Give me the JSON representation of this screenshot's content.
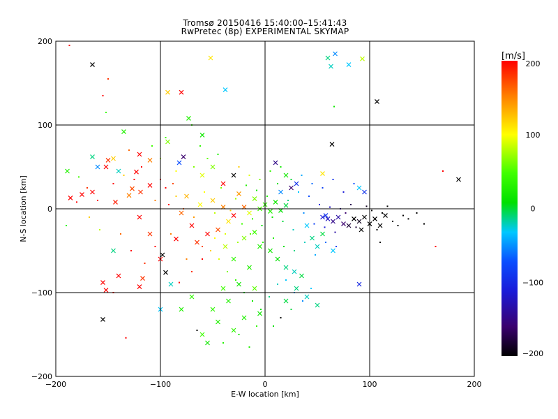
{
  "title_line1": "Tromsø 20150416 15:40:00–15:41:43",
  "title_line2": "RwPretec (8p) EXPERIMENTAL SKYMAP",
  "chart_data": {
    "type": "scatter",
    "xlabel": "E-W location [km]",
    "ylabel": "N-S location [km]",
    "xlim": [
      -200,
      200
    ],
    "ylim": [
      -200,
      200
    ],
    "xticks": [
      -200,
      -100,
      0,
      100,
      200
    ],
    "yticks": [
      -200,
      -100,
      0,
      100,
      200
    ],
    "xtick_labels": [
      "−200",
      "−100",
      "0",
      "100",
      "200"
    ],
    "ytick_labels": [
      "−200",
      "−100",
      "0",
      "100",
      "200"
    ],
    "grid": true,
    "colorbar": {
      "label": "[m/s]",
      "range": [
        -200,
        200
      ],
      "ticks": [
        -200,
        -100,
        0,
        100,
        200
      ],
      "tick_labels": [
        "−200",
        "−100",
        "0",
        "100",
        "200"
      ]
    },
    "marker_types": [
      "x",
      "dot"
    ],
    "points": [
      [
        -165,
        172,
        -200,
        "x"
      ],
      [
        -187,
        195,
        200,
        "dot"
      ],
      [
        -150,
        155,
        180,
        "dot"
      ],
      [
        -155,
        135,
        200,
        "dot"
      ],
      [
        -52,
        180,
        110,
        "x"
      ],
      [
        -38,
        142,
        -40,
        "x"
      ],
      [
        -93,
        139,
        120,
        "x"
      ],
      [
        -80,
        139,
        200,
        "x"
      ],
      [
        -152,
        115,
        40,
        "dot"
      ],
      [
        -135,
        92,
        20,
        "x"
      ],
      [
        67,
        185,
        -60,
        "x"
      ],
      [
        80,
        172,
        -40,
        "x"
      ],
      [
        60,
        180,
        -20,
        "x"
      ],
      [
        63,
        170,
        -30,
        "x"
      ],
      [
        93,
        179,
        80,
        "x"
      ],
      [
        107,
        128,
        -200,
        "x"
      ],
      [
        66,
        122,
        10,
        "dot"
      ],
      [
        64,
        77,
        -200,
        "x"
      ],
      [
        -120,
        65,
        200,
        "x"
      ],
      [
        -110,
        58,
        150,
        "x"
      ],
      [
        -123,
        44,
        200,
        "x"
      ],
      [
        -93,
        80,
        60,
        "x"
      ],
      [
        -95,
        85,
        40,
        "dot"
      ],
      [
        -73,
        108,
        20,
        "x"
      ],
      [
        -70,
        100,
        30,
        "dot"
      ],
      [
        -60,
        88,
        10,
        "x"
      ],
      [
        -78,
        62,
        -160,
        "x"
      ],
      [
        -82,
        55,
        -80,
        "x"
      ],
      [
        -110,
        28,
        200,
        "x"
      ],
      [
        -119,
        20,
        180,
        "x"
      ],
      [
        -150,
        58,
        180,
        "x"
      ],
      [
        -152,
        50,
        200,
        "x"
      ],
      [
        -145,
        60,
        120,
        "x"
      ],
      [
        -165,
        20,
        200,
        "x"
      ],
      [
        -175,
        17,
        200,
        "x"
      ],
      [
        -186,
        13,
        200,
        "x"
      ],
      [
        -189,
        45,
        20,
        "x"
      ],
      [
        -165,
        62,
        -20,
        "x"
      ],
      [
        -160,
        50,
        -60,
        "x"
      ],
      [
        -140,
        45,
        -30,
        "x"
      ],
      [
        -143,
        8,
        190,
        "x"
      ],
      [
        -130,
        16,
        150,
        "x"
      ],
      [
        -127,
        24,
        170,
        "x"
      ],
      [
        -120,
        -10,
        200,
        "x"
      ],
      [
        -110,
        -30,
        180,
        "x"
      ],
      [
        -98,
        -55,
        -200,
        "x"
      ],
      [
        -95,
        -76,
        -200,
        "x"
      ],
      [
        -100,
        -60,
        200,
        "x"
      ],
      [
        -117,
        -83,
        180,
        "x"
      ],
      [
        -145,
        -50,
        -20,
        "x"
      ],
      [
        -140,
        -80,
        200,
        "x"
      ],
      [
        -155,
        -88,
        200,
        "x"
      ],
      [
        -152,
        -97,
        200,
        "x"
      ],
      [
        -120,
        -93,
        200,
        "x"
      ],
      [
        -155,
        -132,
        -200,
        "x"
      ],
      [
        -133,
        -154,
        200,
        "dot"
      ],
      [
        -145,
        -100,
        190,
        "dot"
      ],
      [
        -100,
        -120,
        -40,
        "x"
      ],
      [
        -90,
        -90,
        -30,
        "x"
      ],
      [
        -85,
        -36,
        200,
        "x"
      ],
      [
        -62,
        5,
        100,
        "x"
      ],
      [
        -50,
        10,
        120,
        "x"
      ],
      [
        -40,
        2,
        150,
        "x"
      ],
      [
        -35,
        -15,
        110,
        "x"
      ],
      [
        -30,
        -8,
        200,
        "x"
      ],
      [
        -20,
        2,
        160,
        "x"
      ],
      [
        -15,
        -5,
        90,
        "x"
      ],
      [
        -10,
        12,
        60,
        "x"
      ],
      [
        -5,
        0,
        40,
        "x"
      ],
      [
        0,
        5,
        30,
        "x"
      ],
      [
        5,
        -3,
        20,
        "x"
      ],
      [
        10,
        8,
        10,
        "x"
      ],
      [
        15,
        -2,
        0,
        "x"
      ],
      [
        20,
        4,
        -10,
        "x"
      ],
      [
        -25,
        18,
        140,
        "x"
      ],
      [
        -45,
        -25,
        170,
        "x"
      ],
      [
        -55,
        -30,
        200,
        "x"
      ],
      [
        -65,
        -40,
        180,
        "x"
      ],
      [
        -70,
        -20,
        200,
        "x"
      ],
      [
        -75,
        15,
        130,
        "x"
      ],
      [
        -80,
        -5,
        160,
        "x"
      ],
      [
        -38,
        -45,
        80,
        "x"
      ],
      [
        -20,
        -35,
        60,
        "x"
      ],
      [
        -10,
        -28,
        40,
        "x"
      ],
      [
        -5,
        -45,
        20,
        "x"
      ],
      [
        5,
        -50,
        10,
        "x"
      ],
      [
        12,
        -60,
        0,
        "x"
      ],
      [
        20,
        -70,
        -20,
        "x"
      ],
      [
        28,
        -75,
        -30,
        "x"
      ],
      [
        35,
        -80,
        -10,
        "x"
      ],
      [
        -30,
        -60,
        30,
        "x"
      ],
      [
        -15,
        -70,
        20,
        "x"
      ],
      [
        -25,
        -90,
        10,
        "x"
      ],
      [
        -10,
        -95,
        50,
        "x"
      ],
      [
        -35,
        -110,
        20,
        "x"
      ],
      [
        -50,
        -120,
        30,
        "x"
      ],
      [
        -45,
        -135,
        20,
        "x"
      ],
      [
        -60,
        -150,
        40,
        "x"
      ],
      [
        -55,
        -160,
        10,
        "x"
      ],
      [
        -30,
        -145,
        30,
        "x"
      ],
      [
        -20,
        -130,
        20,
        "x"
      ],
      [
        -5,
        -125,
        10,
        "x"
      ],
      [
        -70,
        -105,
        30,
        "x"
      ],
      [
        -80,
        -120,
        20,
        "x"
      ],
      [
        -40,
        -95,
        40,
        "x"
      ],
      [
        40,
        -20,
        -40,
        "x"
      ],
      [
        45,
        -35,
        -20,
        "x"
      ],
      [
        50,
        -45,
        -30,
        "x"
      ],
      [
        55,
        -30,
        -10,
        "x"
      ],
      [
        65,
        -50,
        -40,
        "x"
      ],
      [
        30,
        -95,
        -20,
        "x"
      ],
      [
        40,
        -105,
        -30,
        "x"
      ],
      [
        50,
        -115,
        -20,
        "x"
      ],
      [
        20,
        -110,
        -10,
        "x"
      ],
      [
        55,
        -10,
        -120,
        "x"
      ],
      [
        60,
        -12,
        -130,
        "x"
      ],
      [
        65,
        -15,
        -150,
        "x"
      ],
      [
        70,
        -10,
        -140,
        "x"
      ],
      [
        75,
        -18,
        -160,
        "x"
      ],
      [
        58,
        -8,
        -100,
        "x"
      ],
      [
        85,
        -12,
        -200,
        "x"
      ],
      [
        90,
        -15,
        -190,
        "x"
      ],
      [
        95,
        -10,
        -200,
        "x"
      ],
      [
        100,
        -18,
        -200,
        "x"
      ],
      [
        105,
        -12,
        -200,
        "x"
      ],
      [
        110,
        -20,
        -200,
        "x"
      ],
      [
        115,
        -8,
        -200,
        "x"
      ],
      [
        80,
        -20,
        -180,
        "x"
      ],
      [
        92,
        -25,
        -200,
        "x"
      ],
      [
        90,
        -90,
        -110,
        "x"
      ],
      [
        95,
        20,
        -100,
        "x"
      ],
      [
        90,
        25,
        -40,
        "x"
      ],
      [
        185,
        35,
        -200,
        "x"
      ],
      [
        170,
        45,
        200,
        "dot"
      ],
      [
        163,
        -45,
        200,
        "dot"
      ],
      [
        30,
        30,
        -100,
        "x"
      ],
      [
        20,
        40,
        10,
        "x"
      ],
      [
        10,
        55,
        -150,
        "x"
      ],
      [
        -30,
        40,
        -200,
        "x"
      ],
      [
        -40,
        30,
        200,
        "x"
      ],
      [
        55,
        42,
        110,
        "x"
      ],
      [
        25,
        25,
        -160,
        "x"
      ],
      [
        15,
        20,
        -60,
        "x"
      ],
      [
        -60,
        40,
        90,
        "x"
      ],
      [
        -50,
        50,
        60,
        "x"
      ],
      [
        -125,
        35,
        200,
        "dot"
      ],
      [
        -135,
        40,
        120,
        "dot"
      ],
      [
        -100,
        35,
        180,
        "dot"
      ],
      [
        -95,
        25,
        200,
        "dot"
      ],
      [
        -88,
        30,
        170,
        "dot"
      ],
      [
        -105,
        10,
        150,
        "dot"
      ],
      [
        -92,
        5,
        200,
        "dot"
      ],
      [
        -85,
        15,
        120,
        "dot"
      ],
      [
        -78,
        0,
        160,
        "dot"
      ],
      [
        -68,
        -10,
        140,
        "dot"
      ],
      [
        -58,
        20,
        100,
        "dot"
      ],
      [
        -48,
        -5,
        80,
        "dot"
      ],
      [
        -42,
        25,
        60,
        "dot"
      ],
      [
        -33,
        -2,
        120,
        "dot"
      ],
      [
        -28,
        12,
        70,
        "dot"
      ],
      [
        -22,
        -18,
        40,
        "dot"
      ],
      [
        -18,
        28,
        20,
        "dot"
      ],
      [
        -12,
        -12,
        30,
        "dot"
      ],
      [
        -8,
        22,
        10,
        "dot"
      ],
      [
        -3,
        -20,
        0,
        "dot"
      ],
      [
        2,
        15,
        20,
        "dot"
      ],
      [
        7,
        -10,
        10,
        "dot"
      ],
      [
        12,
        30,
        0,
        "dot"
      ],
      [
        17,
        -15,
        -10,
        "dot"
      ],
      [
        22,
        10,
        -20,
        "dot"
      ],
      [
        27,
        -25,
        -30,
        "dot"
      ],
      [
        32,
        20,
        -40,
        "dot"
      ],
      [
        37,
        -5,
        -60,
        "dot"
      ],
      [
        42,
        15,
        -80,
        "dot"
      ],
      [
        47,
        -18,
        -90,
        "dot"
      ],
      [
        52,
        5,
        -110,
        "dot"
      ],
      [
        57,
        -22,
        -120,
        "dot"
      ],
      [
        62,
        2,
        -130,
        "dot"
      ],
      [
        67,
        -28,
        -140,
        "dot"
      ],
      [
        72,
        0,
        -150,
        "dot"
      ],
      [
        77,
        -5,
        -160,
        "dot"
      ],
      [
        82,
        5,
        -170,
        "dot"
      ],
      [
        87,
        -22,
        -180,
        "dot"
      ],
      [
        97,
        3,
        -190,
        "dot"
      ],
      [
        102,
        -2,
        -200,
        "dot"
      ],
      [
        107,
        -25,
        -200,
        "dot"
      ],
      [
        112,
        -5,
        -200,
        "dot"
      ],
      [
        117,
        3,
        -200,
        "dot"
      ],
      [
        122,
        -15,
        -200,
        "dot"
      ],
      [
        127,
        -20,
        -200,
        "dot"
      ],
      [
        132,
        -8,
        -200,
        "dot"
      ],
      [
        137,
        -12,
        -200,
        "dot"
      ],
      [
        145,
        -5,
        -200,
        "dot"
      ],
      [
        152,
        -18,
        -200,
        "dot"
      ],
      [
        110,
        -40,
        -200,
        "dot"
      ],
      [
        -52,
        -50,
        120,
        "dot"
      ],
      [
        -44,
        -60,
        90,
        "dot"
      ],
      [
        -36,
        -75,
        60,
        "dot"
      ],
      [
        -28,
        -85,
        30,
        "dot"
      ],
      [
        -20,
        -100,
        20,
        "dot"
      ],
      [
        -12,
        -110,
        10,
        "dot"
      ],
      [
        -4,
        -120,
        0,
        "dot"
      ],
      [
        4,
        -105,
        -20,
        "dot"
      ],
      [
        12,
        -90,
        -30,
        "dot"
      ],
      [
        20,
        -85,
        -40,
        "dot"
      ],
      [
        28,
        -100,
        -50,
        "dot"
      ],
      [
        36,
        -110,
        -60,
        "dot"
      ],
      [
        44,
        -95,
        -40,
        "dot"
      ],
      [
        15,
        -130,
        -200,
        "dot"
      ],
      [
        25,
        -120,
        -10,
        "dot"
      ],
      [
        -65,
        -145,
        -200,
        "dot"
      ],
      [
        -40,
        -160,
        20,
        "dot"
      ],
      [
        -25,
        -150,
        10,
        "dot"
      ],
      [
        -8,
        -140,
        30,
        "dot"
      ],
      [
        8,
        -140,
        0,
        "dot"
      ],
      [
        -15,
        -165,
        20,
        "dot"
      ],
      [
        -60,
        -60,
        200,
        "dot"
      ],
      [
        -70,
        -75,
        180,
        "dot"
      ],
      [
        -82,
        -88,
        200,
        "dot"
      ],
      [
        -62,
        75,
        30,
        "dot"
      ],
      [
        -55,
        60,
        50,
        "dot"
      ],
      [
        -45,
        65,
        20,
        "dot"
      ],
      [
        -68,
        50,
        60,
        "dot"
      ],
      [
        -85,
        45,
        100,
        "dot"
      ],
      [
        -100,
        60,
        80,
        "dot"
      ],
      [
        -108,
        75,
        40,
        "dot"
      ],
      [
        -118,
        50,
        200,
        "dot"
      ],
      [
        -130,
        70,
        160,
        "dot"
      ],
      [
        -145,
        30,
        200,
        "dot"
      ],
      [
        -160,
        10,
        200,
        "dot"
      ],
      [
        -170,
        25,
        180,
        "dot"
      ],
      [
        -178,
        38,
        40,
        "dot"
      ],
      [
        -190,
        -20,
        30,
        "dot"
      ],
      [
        -180,
        8,
        200,
        "dot"
      ],
      [
        -168,
        -10,
        120,
        "dot"
      ],
      [
        -158,
        -25,
        80,
        "dot"
      ],
      [
        -138,
        -30,
        160,
        "dot"
      ],
      [
        -128,
        -50,
        200,
        "dot"
      ],
      [
        -115,
        -65,
        180,
        "dot"
      ],
      [
        -105,
        -45,
        200,
        "dot"
      ],
      [
        -90,
        -30,
        150,
        "dot"
      ],
      [
        -25,
        50,
        120,
        "dot"
      ],
      [
        -15,
        40,
        90,
        "dot"
      ],
      [
        -5,
        35,
        60,
        "dot"
      ],
      [
        5,
        45,
        30,
        "dot"
      ],
      [
        15,
        50,
        10,
        "dot"
      ],
      [
        25,
        35,
        -10,
        "dot"
      ],
      [
        35,
        40,
        -50,
        "dot"
      ],
      [
        45,
        30,
        -70,
        "dot"
      ],
      [
        55,
        25,
        -90,
        "dot"
      ],
      [
        65,
        35,
        -100,
        "dot"
      ],
      [
        75,
        20,
        -120,
        "dot"
      ],
      [
        85,
        30,
        -80,
        "dot"
      ],
      [
        -75,
        -60,
        150,
        "dot"
      ],
      [
        -60,
        -45,
        170,
        "dot"
      ],
      [
        -48,
        -35,
        100,
        "dot"
      ],
      [
        -38,
        -30,
        90,
        "dot"
      ],
      [
        -26,
        -40,
        70,
        "dot"
      ],
      [
        -14,
        -30,
        50,
        "dot"
      ],
      [
        -2,
        -40,
        30,
        "dot"
      ],
      [
        8,
        -35,
        20,
        "dot"
      ],
      [
        18,
        -45,
        0,
        "dot"
      ],
      [
        28,
        -50,
        -20,
        "dot"
      ],
      [
        38,
        -40,
        -30,
        "dot"
      ],
      [
        48,
        -55,
        -50,
        "dot"
      ],
      [
        58,
        -40,
        -70,
        "dot"
      ],
      [
        68,
        -45,
        -90,
        "dot"
      ]
    ]
  }
}
